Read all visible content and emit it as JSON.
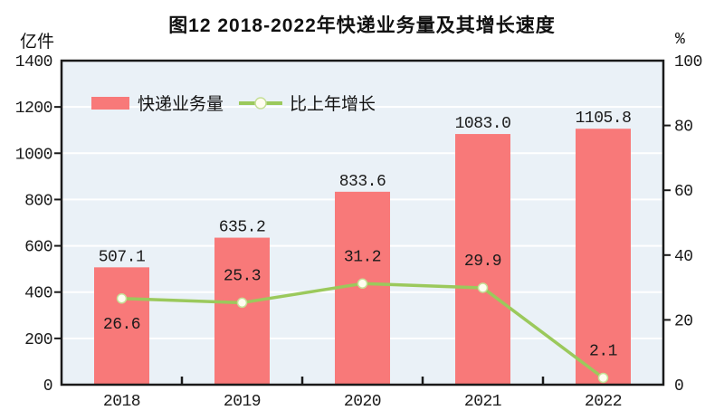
{
  "title": "图12  2018-2022年快递业务量及其增长速度",
  "left_axis_unit": "亿件",
  "right_axis_unit": "%",
  "legend": {
    "bars": "快递业务量",
    "line": "比上年增长"
  },
  "colors": {
    "bar": "#F87979",
    "line": "#9BC95C",
    "marker_fill": "#FFFDF0",
    "marker_stroke": "#C5DF96",
    "plot_bg": "#EAF1F7",
    "grid": "#FFFFFF",
    "axis": "#1A1A1A",
    "text": "#1A1A1A"
  },
  "chart_data": {
    "type": "bar",
    "title": "图12  2018-2022年快递业务量及其增长速度",
    "categories": [
      "2018",
      "2019",
      "2020",
      "2021",
      "2022"
    ],
    "series": [
      {
        "name": "快递业务量",
        "type": "bar",
        "axis": "left",
        "unit": "亿件",
        "values": [
          507.1,
          635.2,
          833.6,
          1083.0,
          1105.8
        ]
      },
      {
        "name": "比上年增长",
        "type": "line",
        "axis": "right",
        "unit": "%",
        "values": [
          26.6,
          25.3,
          31.2,
          29.9,
          2.1
        ],
        "label_positions": [
          "below",
          "above",
          "above",
          "above",
          "above"
        ]
      }
    ],
    "left_axis": {
      "unit": "亿件",
      "min": 0,
      "max": 1400,
      "step": 200
    },
    "right_axis": {
      "unit": "%",
      "min": 0,
      "max": 100,
      "step": 20
    },
    "grid": true,
    "legend_position": "top-left-inside"
  }
}
